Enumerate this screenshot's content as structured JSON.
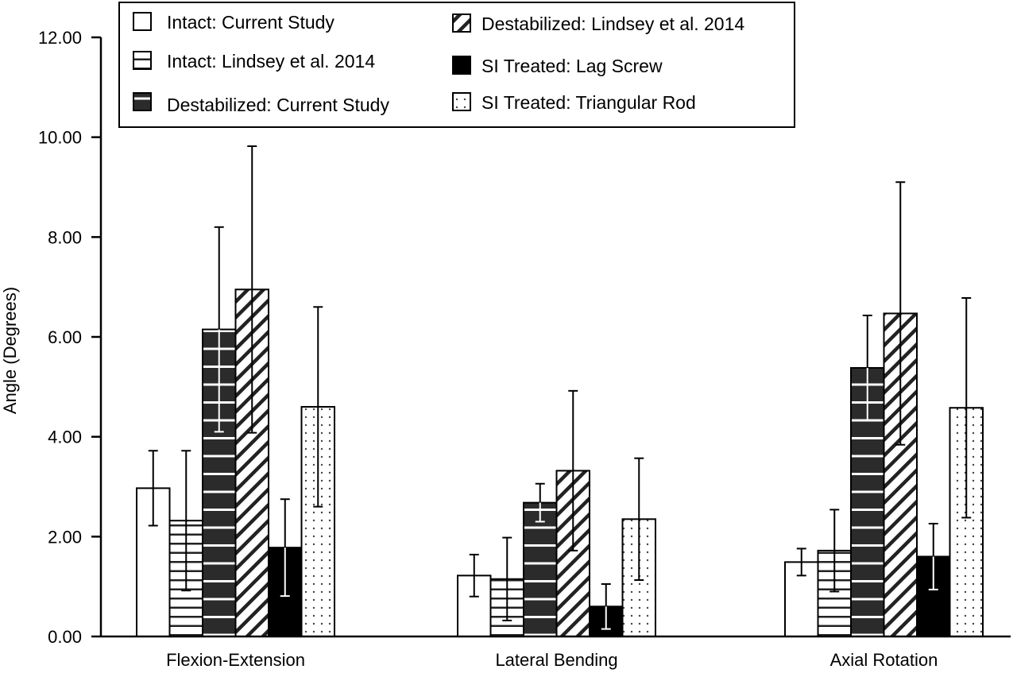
{
  "chart_data": {
    "type": "bar",
    "title": "",
    "xlabel": "",
    "ylabel": "Angle (Degrees)",
    "ylim": [
      0,
      12
    ],
    "yticks": [
      "0.00",
      "2.00",
      "4.00",
      "6.00",
      "8.00",
      "10.00",
      "12.00"
    ],
    "categories": [
      "Flexion-Extension",
      "Lateral Bending",
      "Axial Rotation"
    ],
    "legend_position": "top",
    "series": [
      {
        "name": "Intact: Current Study",
        "pattern": "empty",
        "values": [
          2.97,
          1.22,
          1.49
        ],
        "errors": [
          0.75,
          0.42,
          0.27
        ]
      },
      {
        "name": "Intact: Lindsey et al. 2014",
        "pattern": "hlines-white",
        "values": [
          2.32,
          1.15,
          1.72
        ],
        "errors": [
          1.4,
          0.83,
          0.82
        ]
      },
      {
        "name": "Destabilized: Current Study",
        "pattern": "hlines-dark",
        "values": [
          6.15,
          2.68,
          5.38
        ],
        "errors": [
          2.05,
          0.38,
          1.05
        ]
      },
      {
        "name": "Destabilized: Lindsey et al. 2014",
        "pattern": "diagonal",
        "values": [
          6.95,
          3.32,
          6.47
        ],
        "errors": [
          2.87,
          1.6,
          2.63
        ]
      },
      {
        "name": "SI Treated: Lag Screw",
        "pattern": "solid-black",
        "values": [
          1.78,
          0.6,
          1.6
        ],
        "errors": [
          0.97,
          0.45,
          0.66
        ]
      },
      {
        "name": "SI Treated: Triangular Rod",
        "pattern": "dots",
        "values": [
          4.6,
          2.35,
          4.58
        ],
        "errors": [
          2.0,
          1.22,
          2.2
        ]
      }
    ]
  }
}
